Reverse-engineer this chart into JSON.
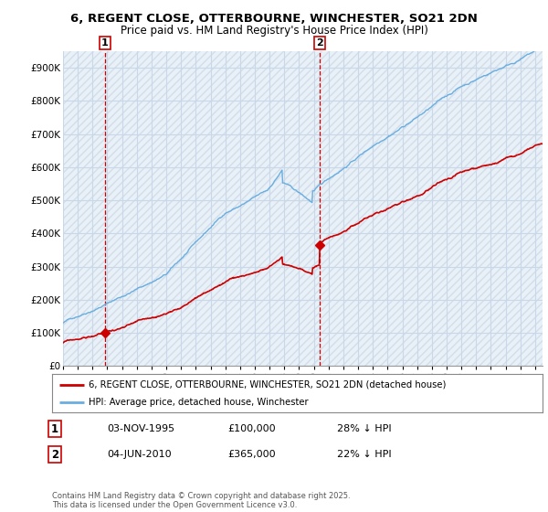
{
  "title": "6, REGENT CLOSE, OTTERBOURNE, WINCHESTER, SO21 2DN",
  "subtitle": "Price paid vs. HM Land Registry's House Price Index (HPI)",
  "legend_entry1": "6, REGENT CLOSE, OTTERBOURNE, WINCHESTER, SO21 2DN (detached house)",
  "legend_entry2": "HPI: Average price, detached house, Winchester",
  "footnote": "Contains HM Land Registry data © Crown copyright and database right 2025.\nThis data is licensed under the Open Government Licence v3.0.",
  "sale1_date": "03-NOV-1995",
  "sale1_price": "£100,000",
  "sale1_hpi": "28% ↓ HPI",
  "sale2_date": "04-JUN-2010",
  "sale2_price": "£365,000",
  "sale2_hpi": "22% ↓ HPI",
  "sale1_year": 1995.84,
  "sale1_value": 100000,
  "sale2_year": 2010.42,
  "sale2_value": 365000,
  "hpi_color": "#6aaee0",
  "price_color": "#cc0000",
  "vline_color": "#cc0000",
  "chart_bg": "#e8f0f8",
  "grid_color": "#c8d8e8",
  "hatch_color": "#c0ccd8",
  "ylim": [
    0,
    950000
  ],
  "xlim_start": 1993.0,
  "xlim_end": 2025.5,
  "yticks": [
    0,
    100000,
    200000,
    300000,
    400000,
    500000,
    600000,
    700000,
    800000,
    900000
  ],
  "ytick_labels": [
    "£0",
    "£100K",
    "£200K",
    "£300K",
    "£400K",
    "£500K",
    "£600K",
    "£700K",
    "£800K",
    "£900K"
  ]
}
